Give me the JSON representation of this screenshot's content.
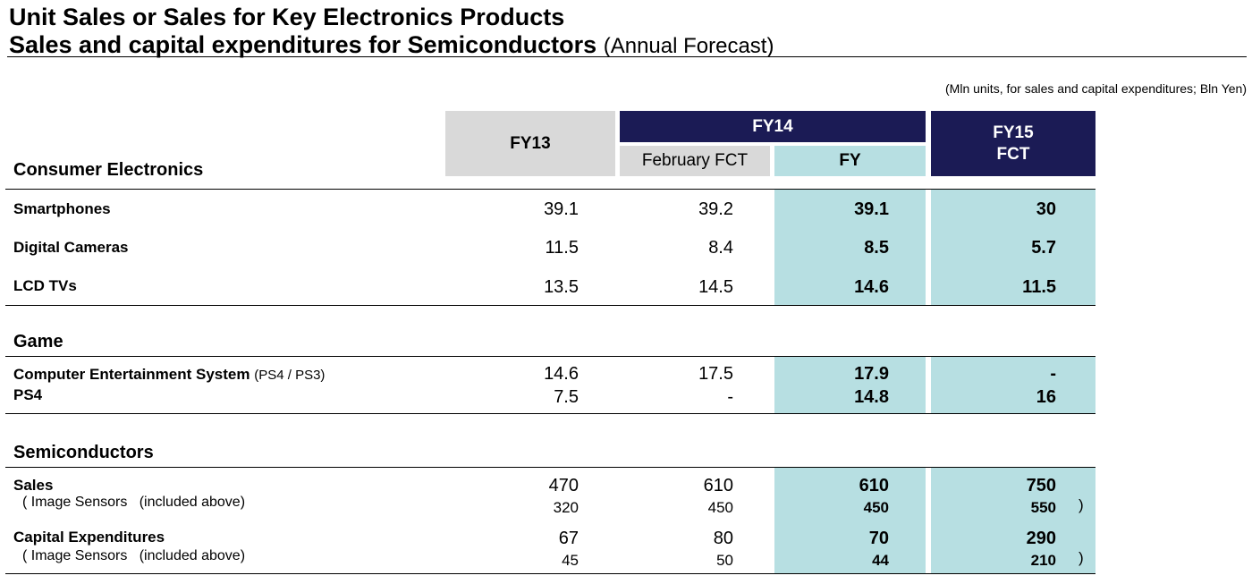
{
  "title": {
    "line1": "Unit Sales or Sales for Key Electronics Products",
    "line2_main": "Sales and capital expenditures for Semiconductors",
    "line2_sub": "(Annual Forecast)"
  },
  "units_note": "(Mln units, for sales and capital expenditures; Bln Yen)",
  "columns": {
    "fy13": "FY13",
    "fy14": "FY14",
    "fy14_feb": "February FCT",
    "fy14_fy": "FY",
    "fy15_line1": "FY15",
    "fy15_line2": "FCT"
  },
  "sections": {
    "consumer": "Consumer Electronics",
    "game": "Game",
    "semi": "Semiconductors"
  },
  "rows": {
    "smartphones": {
      "label": "Smartphones",
      "fy13": "39.1",
      "feb": "39.2",
      "fy": "39.1",
      "fy15": "30"
    },
    "cameras": {
      "label": "Digital Cameras",
      "fy13": "11.5",
      "feb": "8.4",
      "fy": "8.5",
      "fy15": "5.7"
    },
    "lcd": {
      "label": "LCD TVs",
      "fy13": "13.5",
      "feb": "14.5",
      "fy": "14.6",
      "fy15": "11.5"
    },
    "ces": {
      "label": "Computer Entertainment System",
      "label_sub": "(PS4 / PS3)",
      "fy13": "14.6",
      "feb": "17.5",
      "fy": "17.9",
      "fy15": "-"
    },
    "ps4": {
      "label": "PS4",
      "fy13": "7.5",
      "feb": "-",
      "fy": "14.8",
      "fy15": "16"
    },
    "sales": {
      "label": "Sales",
      "fy13": "470",
      "feb": "610",
      "fy": "610",
      "fy15": "750"
    },
    "sales_img": {
      "label": "( Image Sensors   (included above)",
      "fy13": "320",
      "feb": "450",
      "fy": "450",
      "fy15": "550",
      "close": ")"
    },
    "capex": {
      "label": "Capital Expenditures",
      "fy13": "67",
      "feb": "80",
      "fy": "70",
      "fy15": "290"
    },
    "capex_img": {
      "label": "( Image Sensors   (included above)",
      "fy13": "45",
      "feb": "50",
      "fy": "44",
      "fy15": "210",
      "close": ")"
    }
  },
  "colors": {
    "navy": "#1b1b55",
    "teal": "#b7dfe2",
    "gray": "#d9d9d9"
  }
}
